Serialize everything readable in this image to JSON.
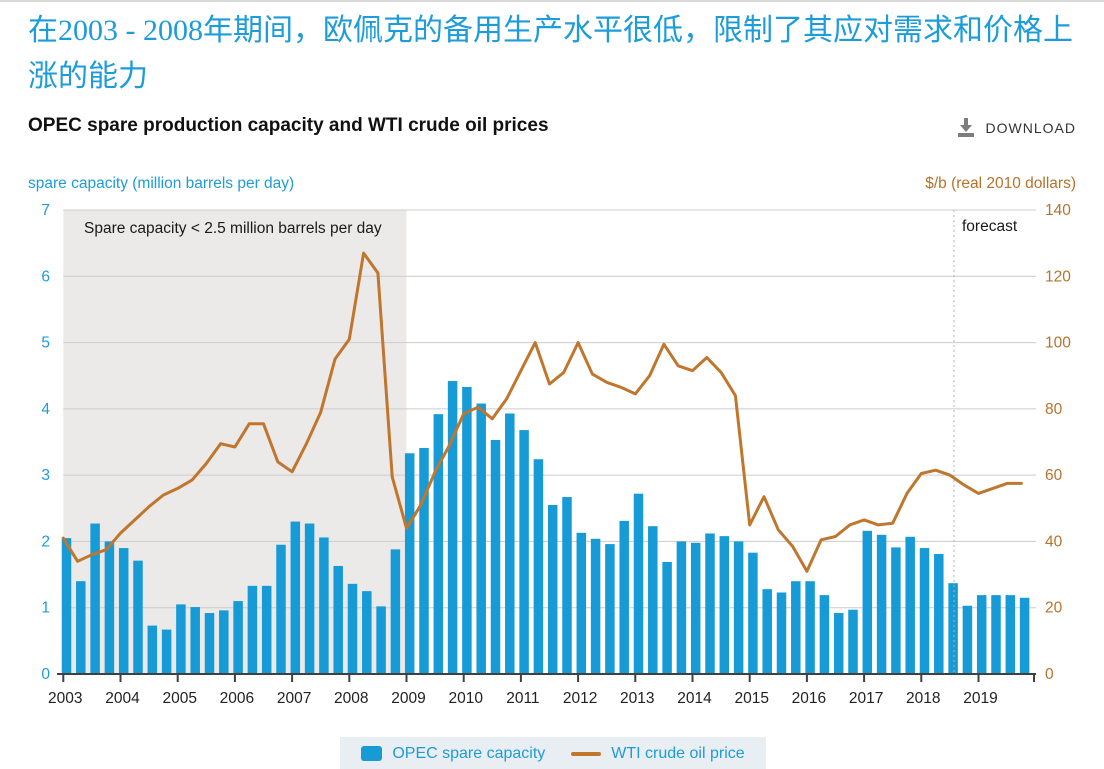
{
  "header": {
    "heading": "在2003 - 2008年期间，欧佩克的备用生产水平很低，限制了其应对需求和价格上涨的能力"
  },
  "chart": {
    "title": "OPEC spare production capacity and WTI crude oil prices",
    "download_label": "DOWNLOAD",
    "left_axis_title": "spare capacity (million barrels per day)",
    "right_axis_title": "$/b (real 2010 dollars)",
    "annotation": "Spare capacity < 2.5 million barrels per day",
    "forecast_label": "forecast",
    "left_ticks": [
      0,
      1,
      2,
      3,
      4,
      5,
      6,
      7
    ],
    "right_ticks": [
      0,
      20,
      40,
      60,
      80,
      100,
      120,
      140
    ],
    "years": [
      2003,
      2004,
      2005,
      2006,
      2007,
      2008,
      2009,
      2010,
      2011,
      2012,
      2013,
      2014,
      2015,
      2016,
      2017,
      2018,
      2019
    ],
    "shaded_region": {
      "start_year": 2003,
      "end_year": 2009
    },
    "forecast_starts_at": "2018 Q4",
    "colors": {
      "bar": "#179bd7",
      "line": "#c0762c",
      "blue_text": "#1d9cda",
      "orange_text": "#b5732c",
      "gridline": "#cccccc",
      "axis": "#404040",
      "shaded": "#ece9e9",
      "annotation_text": "#1a1a1a"
    }
  },
  "legend": {
    "bars": "OPEC spare capacity",
    "line": "WTI crude oil price"
  },
  "chart_data": [
    {
      "type": "bar",
      "name": "OPEC spare capacity",
      "axis": "left",
      "ylabel": "spare capacity (million barrels per day)",
      "ylim": [
        0,
        7
      ],
      "categories": [
        "2003 Q1",
        "2003 Q2",
        "2003 Q3",
        "2003 Q4",
        "2004 Q1",
        "2004 Q2",
        "2004 Q3",
        "2004 Q4",
        "2005 Q1",
        "2005 Q2",
        "2005 Q3",
        "2005 Q4",
        "2006 Q1",
        "2006 Q2",
        "2006 Q3",
        "2006 Q4",
        "2007 Q1",
        "2007 Q2",
        "2007 Q3",
        "2007 Q4",
        "2008 Q1",
        "2008 Q2",
        "2008 Q3",
        "2008 Q4",
        "2009 Q1",
        "2009 Q2",
        "2009 Q3",
        "2009 Q4",
        "2010 Q1",
        "2010 Q2",
        "2010 Q3",
        "2010 Q4",
        "2011 Q1",
        "2011 Q2",
        "2011 Q3",
        "2011 Q4",
        "2012 Q1",
        "2012 Q2",
        "2012 Q3",
        "2012 Q4",
        "2013 Q1",
        "2013 Q2",
        "2013 Q3",
        "2013 Q4",
        "2014 Q1",
        "2014 Q2",
        "2014 Q3",
        "2014 Q4",
        "2015 Q1",
        "2015 Q2",
        "2015 Q3",
        "2015 Q4",
        "2016 Q1",
        "2016 Q2",
        "2016 Q3",
        "2016 Q4",
        "2017 Q1",
        "2017 Q2",
        "2017 Q3",
        "2017 Q4",
        "2018 Q1",
        "2018 Q2",
        "2018 Q3",
        "2018 Q4",
        "2019 Q1",
        "2019 Q2",
        "2019 Q3",
        "2019 Q4"
      ],
      "values": [
        2.05,
        1.4,
        2.27,
        2.0,
        1.9,
        1.71,
        0.73,
        0.67,
        1.05,
        1.01,
        0.92,
        0.96,
        1.1,
        1.33,
        1.33,
        1.95,
        2.3,
        2.27,
        2.06,
        1.63,
        1.36,
        1.25,
        1.02,
        1.88,
        3.33,
        3.41,
        3.92,
        4.42,
        4.33,
        4.08,
        3.53,
        3.93,
        3.68,
        3.24,
        2.55,
        2.67,
        2.13,
        2.04,
        1.96,
        2.31,
        2.72,
        2.23,
        1.69,
        2.0,
        1.98,
        2.12,
        2.08,
        2.0,
        1.83,
        1.28,
        1.23,
        1.4,
        1.4,
        1.19,
        0.92,
        0.97,
        2.16,
        2.1,
        1.91,
        2.07,
        1.9,
        1.81,
        1.37,
        1.03,
        1.19,
        1.19,
        1.19,
        1.15
      ]
    },
    {
      "type": "line",
      "name": "WTI crude oil price",
      "axis": "right",
      "ylabel": "$/b (real 2010 dollars)",
      "ylim": [
        0,
        140
      ],
      "values": [
        41,
        34,
        36,
        37.5,
        42.5,
        46.5,
        50.5,
        54,
        56,
        58.5,
        63.5,
        69.5,
        68.5,
        75.5,
        75.5,
        64,
        61,
        69.5,
        79,
        95,
        101,
        127,
        121,
        59.5,
        44,
        51,
        61,
        69,
        78.5,
        80.5,
        77,
        83,
        91.5,
        100,
        87.5,
        91,
        100,
        90.5,
        88,
        86.5,
        84.5,
        90,
        99.5,
        93,
        91.5,
        95.5,
        91,
        84,
        45,
        53.5,
        43.5,
        38.5,
        31,
        40.5,
        41.5,
        45,
        46.5,
        45,
        45.5,
        54.5,
        60.5,
        61.5,
        60,
        57,
        54.5,
        56,
        57.5,
        57.5
      ]
    }
  ]
}
